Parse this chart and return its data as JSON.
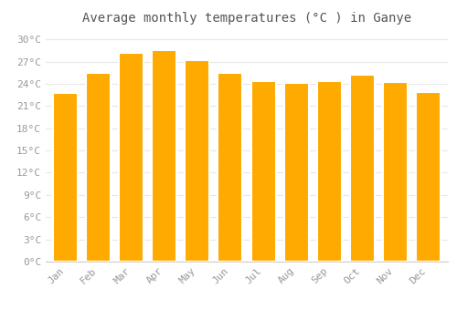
{
  "title": "Average monthly temperatures (°C ) in Ganye",
  "months": [
    "Jan",
    "Feb",
    "Mar",
    "Apr",
    "May",
    "Jun",
    "Jul",
    "Aug",
    "Sep",
    "Oct",
    "Nov",
    "Dec"
  ],
  "values": [
    22.8,
    25.5,
    28.2,
    28.6,
    27.2,
    25.5,
    24.4,
    24.1,
    24.3,
    25.2,
    24.2,
    22.9
  ],
  "bar_color": "#FFAA00",
  "bar_edge_color": "#FFFFFF",
  "background_color": "#FFFFFF",
  "grid_color": "#E8E8E8",
  "ylim": [
    0,
    31
  ],
  "yticks": [
    0,
    3,
    6,
    9,
    12,
    15,
    18,
    21,
    24,
    27,
    30
  ],
  "ytick_labels": [
    "0°C",
    "3°C",
    "6°C",
    "9°C",
    "12°C",
    "15°C",
    "18°C",
    "21°C",
    "24°C",
    "27°C",
    "30°C"
  ],
  "title_fontsize": 10,
  "tick_fontsize": 8,
  "font_color": "#999999",
  "title_color": "#555555",
  "bar_width": 0.75
}
